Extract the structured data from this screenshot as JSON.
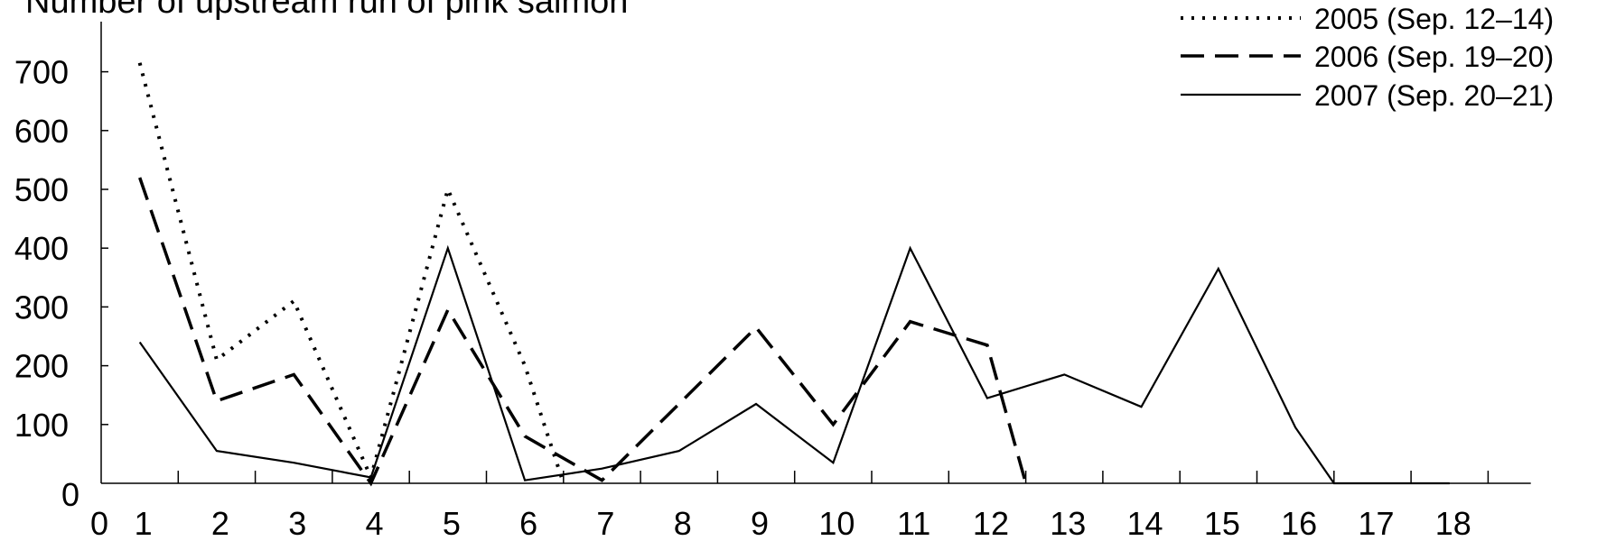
{
  "chart_data": {
    "type": "line",
    "title": "Number of upstream run of pink salmon",
    "xlabel": "",
    "ylabel": "",
    "xlim": [
      0,
      19
    ],
    "ylim": [
      0,
      700
    ],
    "x_ticks": [
      "0",
      "1",
      "2",
      "3",
      "4",
      "5",
      "6",
      "7",
      "8",
      "9",
      "10",
      "11",
      "12",
      "13",
      "14",
      "15",
      "16",
      "17",
      "18"
    ],
    "y_ticks": [
      "0",
      "100",
      "200",
      "300",
      "400",
      "500",
      "600",
      "700"
    ],
    "legend_position": "top-right",
    "series": [
      {
        "name": "2005 (Sep. 12–14)",
        "style": "dotted",
        "points": [
          [
            0.5,
            715
          ],
          [
            1.5,
            210
          ],
          [
            2.5,
            310
          ],
          [
            3.5,
            10
          ],
          [
            4.5,
            500
          ],
          [
            5.5,
            200
          ],
          [
            6.0,
            0
          ]
        ]
      },
      {
        "name": "2006 (Sep. 19–20)",
        "style": "dashed",
        "points": [
          [
            0.5,
            520
          ],
          [
            1.5,
            140
          ],
          [
            2.5,
            185
          ],
          [
            3.5,
            0
          ],
          [
            4.5,
            295
          ],
          [
            5.5,
            80
          ],
          [
            6.5,
            5
          ],
          [
            8.5,
            265
          ],
          [
            9.5,
            100
          ],
          [
            10.5,
            275
          ],
          [
            11.5,
            235
          ],
          [
            12.0,
            0
          ]
        ]
      },
      {
        "name": "2007 (Sep. 20–21)",
        "style": "solid",
        "points": [
          [
            0.5,
            240
          ],
          [
            1.5,
            55
          ],
          [
            2.5,
            35
          ],
          [
            3.5,
            10
          ],
          [
            4.5,
            400
          ],
          [
            5.5,
            5
          ],
          [
            6.5,
            25
          ],
          [
            7.5,
            55
          ],
          [
            8.5,
            135
          ],
          [
            9.5,
            35
          ],
          [
            10.5,
            400
          ],
          [
            11.5,
            145
          ],
          [
            12.5,
            185
          ],
          [
            13.5,
            130
          ],
          [
            14.5,
            365
          ],
          [
            15.5,
            95
          ],
          [
            16.0,
            0
          ],
          [
            17.5,
            0
          ]
        ]
      }
    ]
  }
}
